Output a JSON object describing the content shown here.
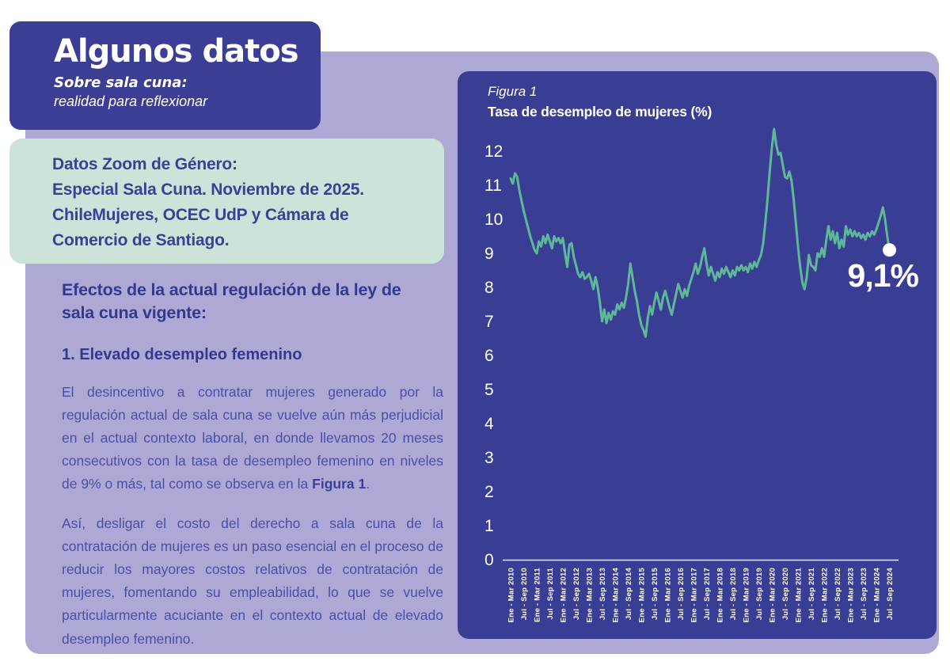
{
  "header": {
    "title": "Algunos datos",
    "subtitle_bold": "Sobre sala cuna:",
    "subtitle_italic": "realidad para reflexionar"
  },
  "source_box": {
    "text": "Datos Zoom de Género:\nEspecial Sala Cuna. Noviembre de 2025.\nChileMujeres, OCEC UdP y Cámara de\nComercio de Santiago."
  },
  "content": {
    "section_heading": "Efectos de la actual regulación de la ley de sala cuna vigente:",
    "point_heading": "1. Elevado desempleo femenino",
    "paragraph_1_text": "El desincentivo a contratar mujeres generado por la regulación actual de sala cuna se vuelve aún más perjudicial en el actual contexto laboral, en donde llevamos 20 meses consecutivos con la tasa de desempleo femenino en niveles de 9% o más, tal como se observa en la ",
    "paragraph_1_bold": "Figura 1",
    "paragraph_1_end": ".",
    "paragraph_2": "Así, desligar el costo del derecho a sala cuna de la contratación de mujeres es un paso esencial en el proceso de reducir los mayores costos relativos de contratación de mujeres, fomentando su empleabilidad, lo que se vuelve particularmente acuciante en el contexto actual de elevado desempleo femenino."
  },
  "colors": {
    "background_panel": "#aea9d4",
    "title_card": "#3c3e96",
    "source_card": "#cbe3d9",
    "chart_card": "#393e94",
    "line": "#5eb897",
    "heading_text": "#34388f",
    "body_text": "#4b4ea6"
  },
  "chart_data": {
    "type": "line",
    "figure_label": "Figura 1",
    "title": "Tasa de desempleo de mujeres (%)",
    "ylabel": "",
    "xlabel": "",
    "ylim": [
      0,
      13
    ],
    "y_ticks": [
      0,
      1,
      2,
      3,
      4,
      5,
      6,
      7,
      8,
      9,
      10,
      11,
      12
    ],
    "grid": false,
    "legend": "none",
    "x_start": "Ene - Mar 2010",
    "x_end": "Jul - Sep 2024",
    "x_frequency": "trimestre móvil mensual",
    "x_tick_labels": [
      "Ene - Mar 2010",
      "Jul - Sep 2010",
      "Ene - Mar 2011",
      "Jul - Sep 2011",
      "Ene - Mar 2012",
      "Jul - Sep 2012",
      "Ene - Mar 2013",
      "Jul - Sep 2013",
      "Ene - Mar 2014",
      "Jul - Sep 2014",
      "Ene - Mar 2015",
      "Jul - Sep 2015",
      "Ene - Mar 2016",
      "Jul - Sep 2016",
      "Ene - Mar 2017",
      "Jul - Sep 2017",
      "Ene - Mar 2018",
      "Jul - Sep 2018",
      "Ene - Mar 2019",
      "Jul - Sep 2019",
      "Ene - Mar 2020",
      "Jul - Sep 2020",
      "Ene - Mar 2021",
      "Jul - Sep 2021",
      "Ene - Mar 2022",
      "Jul - Sep 2022",
      "Ene - Mar 2023",
      "Jul - Sep 2023",
      "Ene - Mar 2024",
      "Jul - Sep 2024"
    ],
    "values": [
      11.2,
      11.05,
      11.35,
      11.25,
      10.85,
      10.55,
      10.25,
      10.0,
      9.75,
      9.5,
      9.3,
      9.1,
      9.0,
      9.35,
      9.2,
      9.5,
      9.3,
      9.55,
      9.35,
      9.15,
      9.5,
      9.35,
      9.45,
      9.3,
      9.45,
      9.0,
      8.6,
      9.25,
      9.3,
      8.9,
      8.65,
      8.4,
      8.3,
      8.45,
      8.25,
      8.3,
      8.4,
      8.2,
      7.95,
      8.3,
      8.0,
      7.55,
      7.0,
      7.35,
      6.95,
      7.25,
      7.05,
      7.3,
      7.2,
      7.5,
      7.35,
      7.55,
      7.4,
      7.7,
      8.1,
      8.7,
      8.3,
      7.9,
      7.6,
      7.2,
      6.9,
      6.75,
      6.55,
      7.1,
      7.45,
      7.2,
      7.55,
      7.85,
      7.6,
      7.35,
      7.7,
      7.9,
      7.65,
      7.4,
      7.2,
      7.5,
      7.8,
      8.1,
      7.9,
      7.7,
      7.95,
      7.75,
      8.05,
      8.25,
      8.45,
      8.7,
      8.4,
      8.6,
      8.9,
      9.15,
      8.7,
      8.35,
      8.6,
      8.4,
      8.2,
      8.45,
      8.3,
      8.55,
      8.4,
      8.6,
      8.45,
      8.3,
      8.5,
      8.35,
      8.6,
      8.5,
      8.65,
      8.5,
      8.6,
      8.45,
      8.7,
      8.55,
      8.75,
      8.6,
      8.8,
      8.95,
      9.3,
      9.9,
      10.6,
      11.4,
      12.1,
      12.65,
      12.2,
      11.9,
      11.95,
      11.6,
      11.25,
      11.2,
      11.4,
      11.15,
      10.6,
      9.9,
      9.2,
      8.6,
      8.15,
      7.95,
      8.3,
      8.95,
      8.65,
      8.6,
      8.5,
      9.0,
      8.9,
      9.15,
      8.9,
      9.4,
      9.8,
      9.4,
      9.65,
      9.3,
      9.6,
      9.15,
      9.4,
      9.2,
      9.8,
      9.55,
      9.7,
      9.5,
      9.65,
      9.5,
      9.6,
      9.45,
      9.55,
      9.4,
      9.6,
      9.5,
      9.65,
      9.55,
      9.7,
      9.9,
      10.1,
      10.35,
      10.0,
      9.5,
      9.1
    ],
    "last_value_label": "9,1%",
    "line_color": "#5eb897",
    "marker_color": "#ffffff"
  }
}
